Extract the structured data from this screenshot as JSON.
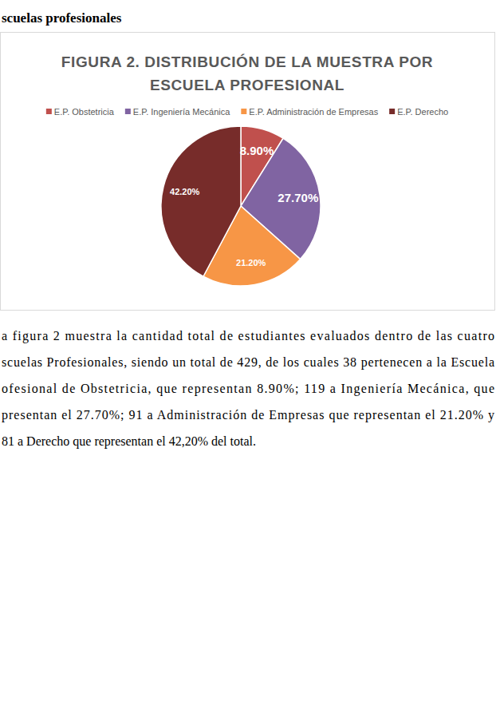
{
  "chart_data": {
    "type": "pie",
    "title": [
      "FIGURA 2. DISTRIBUCIÓN DE LA MUESTRA POR",
      "ESCUELA PROFESIONAL"
    ],
    "categories": [
      "E.P. Obstetricia",
      "E.P. Ingeniería Mecánica",
      "E.P. Administración de Empresas",
      "E.P. Derecho"
    ],
    "values": [
      8.9,
      27.7,
      21.2,
      42.2
    ],
    "value_labels": [
      "8.90%",
      "27.70%",
      "21.20%",
      "42.20%"
    ],
    "colors": [
      "#c0504d",
      "#8064a2",
      "#f79646",
      "#772c2a"
    ],
    "data_labels": true,
    "legend": "top"
  },
  "document": {
    "heading": "scuelas profesionales",
    "paragraph": [
      "a figura 2 muestra la cantidad total de estudiantes evaluados dentro de las cuatro",
      "scuelas Profesionales, siendo un total de 429, de los cuales 38 pertenecen a la Escuela",
      "ofesional de Obstetricia, que representan 8.90%; 119 a Ingeniería Mecánica, que",
      "presentan el 27.70%; 91 a Administración de Empresas que representan el 21.20% y",
      "81 a Derecho que representan el 42,20% del total."
    ]
  }
}
